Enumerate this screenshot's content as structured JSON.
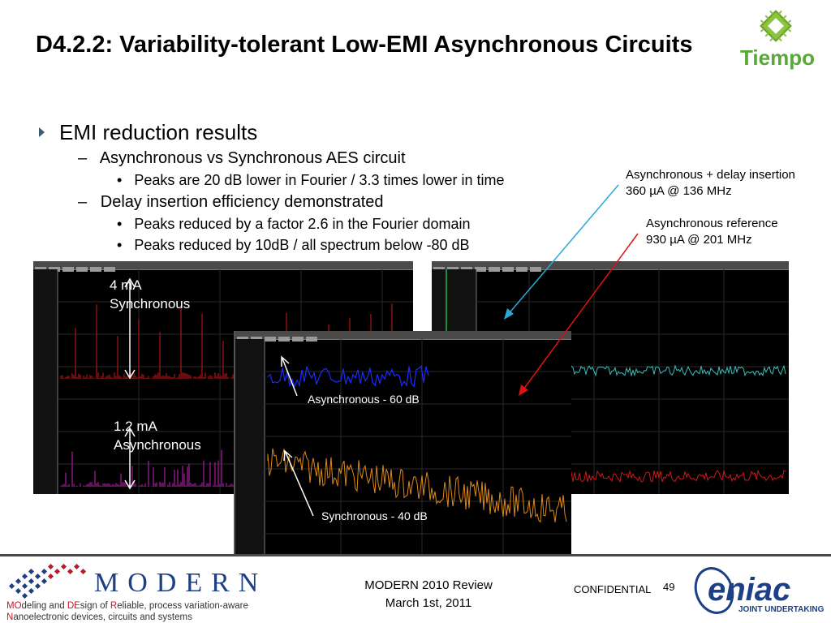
{
  "slide": {
    "title": "D4.2.2: Variability-tolerant Low-EMI Asynchronous Circuits",
    "bullets": {
      "l1": "EMI reduction results",
      "l2a": "Asynchronous vs Synchronous AES circuit",
      "l3a": "Peaks are 20 dB lower in Fourier / 3.3 times lower in time",
      "l2b": "Delay insertion efficiency demonstrated",
      "l3b1": "Peaks reduced by a factor 2.6 in the Fourier domain",
      "l3b2": "Peaks reduced by 10dB / all spectrum below -80 dB"
    },
    "annotations": {
      "async_delay_line1": "Asynchronous + delay insertion",
      "async_delay_line2": "360 µA @ 136 MHz",
      "async_ref_line1": "Asynchronous reference",
      "async_ref_line2": "930 µA @ 201 MHz"
    },
    "scope_labels": {
      "sync_current": "4 mA",
      "sync_name": "Synchronous",
      "async_current": "1.2 mA",
      "async_name": "Asynchronous",
      "async_db": "Asynchronous - 60 dB",
      "sync_db": "Synchronous - 40 dB"
    }
  },
  "footer": {
    "review_line1": "MODERN 2010 Review",
    "review_line2": "March 1st, 2011",
    "confidential": "CONFIDENTIAL",
    "page_number": "49",
    "modern_word": "MODERN",
    "modern_sub_parts": [
      "MO",
      "deling and ",
      "DE",
      "sign of ",
      "R",
      "eliable, process variation-aware"
    ],
    "modern_sub_line2_parts": [
      "N",
      "anoelectronic devices, circuits and systems"
    ],
    "eniac_word": "eniac",
    "eniac_sub": "JOINT UNDERTAKING",
    "tiempo_word": "Tiempo"
  },
  "colors": {
    "blue_waveform": "#1a2cff",
    "orange_waveform": "#e08a10",
    "cyan_waveform": "#3bbfbf",
    "red_waveform": "#d01818",
    "magenta_waveform": "#d020c0",
    "cyan_arrow": "#2aa8d8",
    "red_arrow": "#e01010"
  },
  "icons": [
    "tiempo-logo-icon",
    "modern-logo-icon",
    "eniac-logo-icon",
    "bullet-arrow-icon"
  ]
}
